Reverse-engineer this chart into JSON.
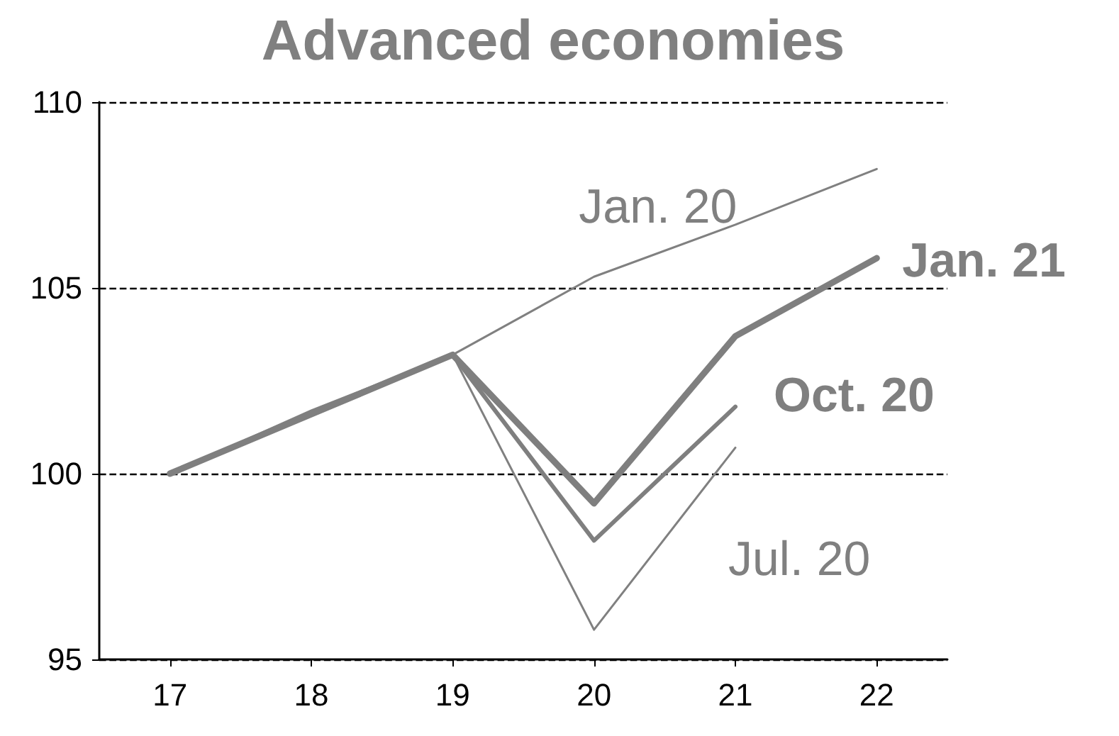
{
  "chart_data": {
    "type": "line",
    "title": "Advanced economies",
    "categories": [
      "17",
      "18",
      "19",
      "20",
      "21",
      "22"
    ],
    "series": [
      {
        "name": "Jul. 20",
        "color": "#808080",
        "values": [
          100,
          101.6,
          103.2,
          95.8,
          100.7,
          null
        ]
      },
      {
        "name": "Jan. 20",
        "color": "#808080",
        "values": [
          100,
          101.7,
          103.2,
          105.3,
          106.7,
          108.2
        ]
      },
      {
        "name": "Oct. 20",
        "color": "#7f7f7f",
        "values": [
          100,
          101.6,
          103.2,
          98.2,
          101.8,
          null
        ]
      },
      {
        "name": "Jan. 21",
        "color": "#7f7f7f",
        "values": [
          100,
          101.6,
          103.2,
          99.2,
          103.7,
          105.8
        ]
      }
    ],
    "ylim": [
      95,
      110
    ],
    "yticks": [
      95,
      100,
      105,
      110
    ],
    "grid": "y",
    "marker": "none",
    "line_style": "solid",
    "legend": false
  }
}
